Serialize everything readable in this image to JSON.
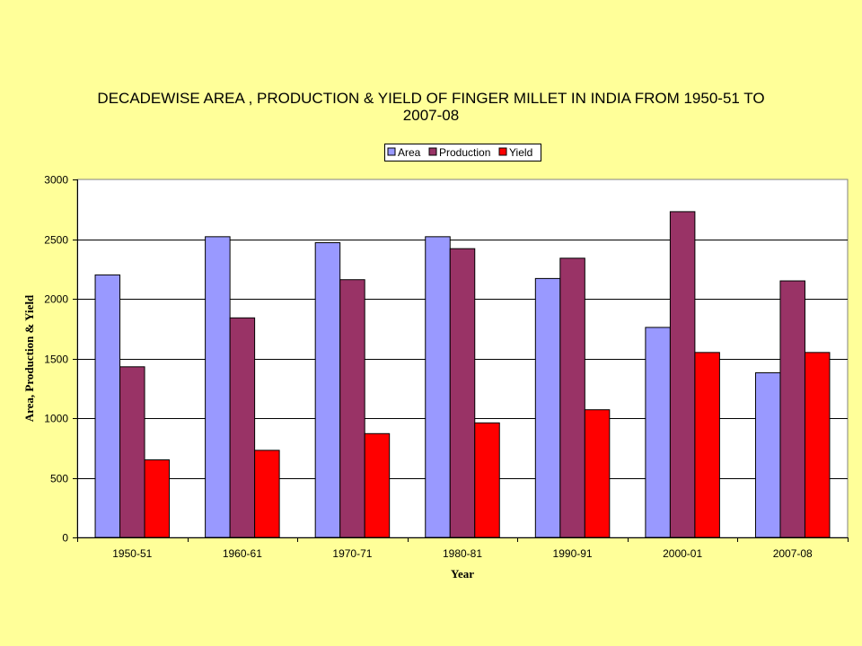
{
  "chart_data": {
    "type": "bar",
    "title": "DECADEWISE AREA , PRODUCTION & YIELD OF FINGER MILLET IN INDIA FROM 1950-51 TO 2007-08",
    "xlabel": "Year",
    "ylabel": "Area, Production & Yield",
    "categories": [
      "1950-51",
      "1960-61",
      "1970-71",
      "1980-81",
      "1990-91",
      "2000-01",
      "2007-08"
    ],
    "series": [
      {
        "name": "Area",
        "color": "#9999FF",
        "values": [
          2200,
          2520,
          2470,
          2520,
          2170,
          1760,
          1380
        ]
      },
      {
        "name": "Production",
        "color": "#993366",
        "values": [
          1430,
          1840,
          2160,
          2420,
          2340,
          2730,
          2150
        ]
      },
      {
        "name": "Yield",
        "color": "#FF0000",
        "values": [
          650,
          730,
          870,
          960,
          1070,
          1550,
          1550
        ]
      }
    ],
    "ylim": [
      0,
      3000
    ],
    "yticks": [
      "0",
      "500",
      "1000",
      "1500",
      "2000",
      "2500",
      "3000"
    ],
    "grid": true,
    "legend_position": "top-center",
    "plot_background": "#FFFFFF",
    "page_background": "#FFFF99"
  }
}
